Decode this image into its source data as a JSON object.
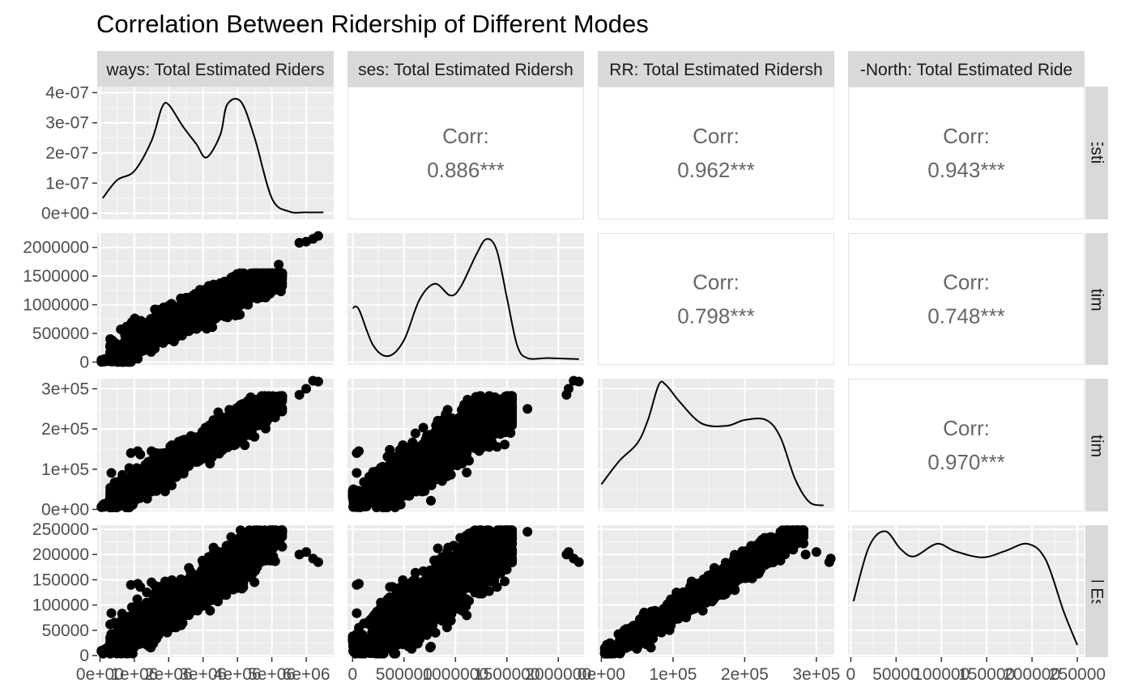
{
  "chart_data": {
    "type": "scatter",
    "title": "Correlation Between Ridership of Different Modes",
    "variables": [
      {
        "name": "Subways: Total Estimated Ridership",
        "range": [
          -80000,
          6800000
        ]
      },
      {
        "name": "Buses: Total Estimated Ridership",
        "range": [
          -50000,
          2250000
        ]
      },
      {
        "name": "LIRR: Total Estimated Ridership",
        "range": [
          -5000,
          325000
        ]
      },
      {
        "name": "Metro-North: Total Estimated Ridership",
        "range": [
          -3000,
          258000
        ]
      }
    ],
    "strip_labels_top": [
      "ways: Total Estimated Riders",
      "ses: Total Estimated Ridersh",
      "RR: Total Estimated Ridersh",
      "-North: Total Estimated Ride"
    ],
    "strip_labels_right": [
      "Total Estimated",
      "otal Estimated R",
      "otal Estimated R",
      "n: Total Estimate"
    ],
    "corr_label": "Corr:",
    "correlations": [
      {
        "row": 1,
        "col": 2,
        "value": "0.886***"
      },
      {
        "row": 1,
        "col": 3,
        "value": "0.962***"
      },
      {
        "row": 1,
        "col": 4,
        "value": "0.943***"
      },
      {
        "row": 2,
        "col": 3,
        "value": "0.798***"
      },
      {
        "row": 2,
        "col": 4,
        "value": "0.748***"
      },
      {
        "row": 3,
        "col": 4,
        "value": "0.970***"
      }
    ],
    "density_y_ticks": {
      "labels": [
        "0e+00",
        "1e-07",
        "2e-07",
        "3e-07",
        "4e-07"
      ],
      "values": [
        0,
        1e-07,
        2e-07,
        3e-07,
        4e-07
      ],
      "range": [
        -2e-08,
        4.2e-07
      ]
    },
    "y_ticks": [
      null,
      {
        "labels": [
          "0",
          "500000",
          "1000000",
          "1500000",
          "2000000"
        ],
        "values": [
          0,
          500000,
          1000000,
          1500000,
          2000000
        ]
      },
      {
        "labels": [
          "0e+00",
          "1e+05",
          "2e+05",
          "3e+05"
        ],
        "values": [
          0,
          100000,
          200000,
          300000
        ]
      },
      {
        "labels": [
          "0",
          "50000",
          "100000",
          "150000",
          "200000",
          "250000"
        ],
        "values": [
          0,
          50000,
          100000,
          150000,
          200000,
          250000
        ]
      }
    ],
    "x_ticks": [
      {
        "labels": [
          "0e+00",
          "1e+06",
          "2e+06",
          "3e+06",
          "4e+06",
          "5e+06",
          "6e+06"
        ],
        "values": [
          0,
          1000000,
          2000000,
          3000000,
          4000000,
          5000000,
          6000000
        ]
      },
      {
        "labels": [
          "0",
          "500000",
          "1000000",
          "1500000",
          "2000000"
        ],
        "values": [
          0,
          500000,
          1000000,
          1500000,
          2000000
        ]
      },
      {
        "labels": [
          "0e+00",
          "1e+05",
          "2e+05",
          "3e+05"
        ],
        "values": [
          0,
          100000,
          200000,
          300000
        ]
      },
      {
        "labels": [
          "0",
          "50000",
          "100000",
          "150000",
          "200000",
          "250000"
        ],
        "values": [
          0,
          50000,
          100000,
          150000,
          200000,
          250000
        ]
      }
    ],
    "densities": [
      {
        "variable": 1,
        "x": [
          80000,
          500000,
          1000000,
          1500000,
          1800000,
          2000000,
          2400000,
          2800000,
          3100000,
          3500000,
          3700000,
          4100000,
          4500000,
          5000000,
          5500000,
          6000000,
          6500000
        ],
        "y": [
          5e-08,
          1.1e-07,
          1.4e-07,
          2.4e-07,
          3.5e-07,
          3.6e-07,
          2.9e-07,
          2.3e-07,
          1.85e-07,
          2.6e-07,
          3.6e-07,
          3.7e-07,
          2.5e-07,
          5e-08,
          6e-09,
          3e-09,
          3e-09
        ]
      },
      {
        "variable": 2,
        "x": [
          0,
          60000,
          200000,
          350000,
          500000,
          650000,
          800000,
          950000,
          1050000,
          1200000,
          1300000,
          1400000,
          1500000,
          1600000,
          1700000,
          1900000,
          2200000
        ],
        "y": [
          0.5,
          0.49,
          0.15,
          0.05,
          0.2,
          0.58,
          0.73,
          0.62,
          0.7,
          1.0,
          1.15,
          1.05,
          0.6,
          0.15,
          0.03,
          0.03,
          0.02
        ]
      },
      {
        "variable": 3,
        "x": [
          0,
          25000,
          50000,
          65000,
          80000,
          90000,
          110000,
          140000,
          175000,
          200000,
          230000,
          250000,
          270000,
          290000,
          310000
        ],
        "y": [
          0.2,
          0.4,
          0.55,
          0.75,
          1.05,
          1.05,
          0.9,
          0.72,
          0.7,
          0.75,
          0.75,
          0.6,
          0.25,
          0.05,
          0.02
        ]
      },
      {
        "variable": 4,
        "x": [
          3000,
          20000,
          38000,
          55000,
          70000,
          95000,
          115000,
          145000,
          170000,
          195000,
          215000,
          235000,
          250000
        ],
        "y": [
          0.5,
          1.02,
          1.17,
          1.0,
          0.93,
          1.05,
          0.98,
          0.92,
          0.98,
          1.05,
          0.9,
          0.4,
          0.08
        ]
      }
    ],
    "scatter_point_count_per_panel": 2000,
    "grid": true,
    "panel_background": "#ebebeb",
    "strip_background": "#d9d9d9",
    "point_color": "#000000"
  }
}
